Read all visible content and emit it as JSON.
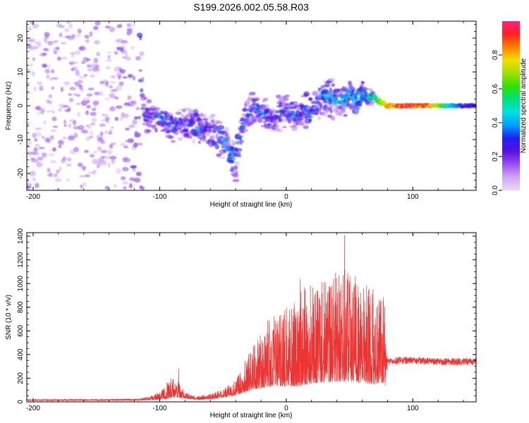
{
  "title": "S199.2026.002.05.58.R03",
  "colors": {
    "trace": "#ee3333",
    "axis": "#000000"
  },
  "chart_data": [
    {
      "type": "heatmap",
      "xlabel": "Height of straight line (km)",
      "ylabel": "Frequency (Hz)",
      "xlim": [
        -205,
        150
      ],
      "ylim": [
        -25,
        25
      ],
      "x_ticks": [
        -200,
        -100,
        0,
        100
      ],
      "y_ticks": [
        -20,
        -10,
        0,
        10,
        20
      ],
      "grid": false,
      "colorbar": {
        "label": "Normalized spectral amplitude",
        "range": [
          0,
          1
        ],
        "ticks": [
          "0.0",
          "0.2",
          "0.4",
          "0.6",
          "0.8"
        ],
        "colormap": [
          "#e8d8f8",
          "#cfa8f4",
          "#9a50f0",
          "#5a10e0",
          "#2020f0",
          "#00a0ff",
          "#00e0e0",
          "#00e080",
          "#30e000",
          "#a0e000",
          "#f0e000",
          "#ff8000",
          "#ff2020",
          "#ff2080"
        ]
      },
      "ridge": {
        "x": [
          -205,
          -180,
          -160,
          -140,
          -120,
          -110,
          -100,
          -90,
          -80,
          -70,
          -60,
          -50,
          -45,
          -40,
          -35,
          -30,
          -25,
          -20,
          -15,
          -10,
          -5,
          0,
          5,
          10,
          15,
          20,
          25,
          30,
          35,
          40,
          45,
          50,
          55,
          60,
          65,
          70,
          75,
          80,
          90,
          100,
          110,
          120,
          130,
          140,
          150
        ],
        "y": [
          0,
          0,
          -2,
          0,
          -1,
          -3,
          -4,
          -6,
          -5,
          -6,
          -8,
          -10,
          -13,
          -17,
          -6,
          -2,
          0,
          -2,
          -3,
          -4,
          -2,
          -1,
          -2,
          -3,
          -1,
          -2,
          1,
          2,
          3,
          2,
          1,
          3,
          2,
          4,
          3,
          2,
          1,
          0,
          0,
          0,
          0,
          0,
          0,
          0,
          0
        ],
        "spread": [
          22,
          22,
          22,
          22,
          20,
          6,
          5,
          5,
          5,
          6,
          6,
          6,
          6,
          7,
          6,
          5,
          5,
          5,
          5,
          6,
          6,
          5,
          5,
          5,
          6,
          6,
          6,
          6,
          7,
          6,
          5,
          5,
          5,
          4,
          3,
          2,
          1,
          1,
          0.8,
          0.8,
          0.8,
          0.8,
          0.8,
          0.8,
          0.8
        ],
        "strength": [
          0.1,
          0.12,
          0.12,
          0.12,
          0.15,
          0.25,
          0.3,
          0.3,
          0.28,
          0.3,
          0.32,
          0.34,
          0.36,
          0.35,
          0.3,
          0.3,
          0.32,
          0.3,
          0.28,
          0.28,
          0.26,
          0.3,
          0.3,
          0.28,
          0.3,
          0.32,
          0.34,
          0.36,
          0.36,
          0.38,
          0.38,
          0.4,
          0.42,
          0.44,
          0.45,
          0.55,
          0.7,
          0.85,
          0.95,
          0.95,
          0.9,
          0.7,
          0.45,
          0.3,
          0.28
        ]
      }
    },
    {
      "type": "line",
      "xlabel": "Height of straight line (km)",
      "ylabel": "SNR (10 * v/v)",
      "xlim": [
        -205,
        150
      ],
      "ylim": [
        0,
        1430
      ],
      "x_ticks": [
        -200,
        -100,
        0,
        100
      ],
      "y_ticks": [
        0,
        200,
        400,
        600,
        800,
        1000,
        1200,
        1400
      ],
      "grid": false,
      "envelope": {
        "x": [
          -205,
          -150,
          -110,
          -100,
          -95,
          -90,
          -85,
          -80,
          -75,
          -70,
          -60,
          -50,
          -40,
          -30,
          -25,
          -20,
          -15,
          -10,
          -5,
          0,
          5,
          10,
          15,
          20,
          25,
          30,
          35,
          40,
          45,
          50,
          55,
          60,
          65,
          70,
          75,
          78,
          80,
          90,
          100,
          110,
          120,
          130,
          140,
          150
        ],
        "base": [
          15,
          15,
          20,
          30,
          50,
          70,
          60,
          40,
          30,
          25,
          30,
          50,
          80,
          150,
          180,
          200,
          230,
          260,
          260,
          250,
          270,
          280,
          300,
          310,
          320,
          330,
          340,
          340,
          350,
          340,
          330,
          320,
          310,
          300,
          300,
          300,
          340,
          350,
          350,
          345,
          340,
          340,
          340,
          340
        ],
        "amp": [
          10,
          10,
          15,
          40,
          90,
          110,
          80,
          40,
          20,
          20,
          30,
          50,
          80,
          200,
          250,
          300,
          360,
          420,
          420,
          420,
          470,
          500,
          520,
          520,
          540,
          560,
          580,
          580,
          600,
          580,
          560,
          540,
          520,
          500,
          480,
          450,
          60,
          60,
          60,
          60,
          60,
          60,
          60,
          60
        ]
      },
      "spikes": [
        {
          "x": 11,
          "y": 1040
        },
        {
          "x": 34,
          "y": 930
        },
        {
          "x": 46,
          "y": 1410
        },
        {
          "x": 60,
          "y": 760
        },
        {
          "x": 25,
          "y": 880
        },
        {
          "x": -85,
          "y": 280
        }
      ]
    }
  ]
}
